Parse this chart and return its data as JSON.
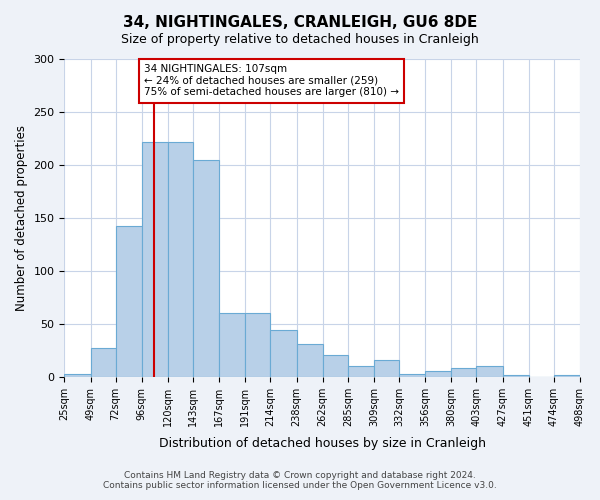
{
  "title": "34, NIGHTINGALES, CRANLEIGH, GU6 8DE",
  "subtitle": "Size of property relative to detached houses in Cranleigh",
  "xlabel": "Distribution of detached houses by size in Cranleigh",
  "ylabel": "Number of detached properties",
  "bar_values": [
    3,
    27,
    142,
    222,
    222,
    205,
    60,
    60,
    44,
    31,
    21,
    10,
    16,
    3,
    5,
    8,
    10,
    2,
    0,
    2
  ],
  "bin_edges": [
    25,
    49,
    72,
    96,
    120,
    143,
    167,
    191,
    214,
    238,
    262,
    285,
    309,
    332,
    356,
    380,
    403,
    427,
    451,
    474,
    498
  ],
  "bin_labels": [
    "25sqm",
    "49sqm",
    "72sqm",
    "96sqm",
    "120sqm",
    "143sqm",
    "167sqm",
    "191sqm",
    "214sqm",
    "238sqm",
    "262sqm",
    "285sqm",
    "309sqm",
    "332sqm",
    "356sqm",
    "380sqm",
    "403sqm",
    "427sqm",
    "451sqm",
    "474sqm",
    "498sqm"
  ],
  "bar_color": "#b8d0e8",
  "bar_edge_color": "#6aaad4",
  "vline_x": 107,
  "vline_color": "#cc0000",
  "annotation_text": "34 NIGHTINGALES: 107sqm\n← 24% of detached houses are smaller (259)\n75% of semi-detached houses are larger (810) →",
  "annotation_box_color": "#ffffff",
  "annotation_box_edge": "#cc0000",
  "ylim": [
    0,
    300
  ],
  "yticks": [
    0,
    50,
    100,
    150,
    200,
    250,
    300
  ],
  "footer": "Contains HM Land Registry data © Crown copyright and database right 2024.\nContains public sector information licensed under the Open Government Licence v3.0.",
  "bg_color": "#eef2f8",
  "plot_bg_color": "#ffffff",
  "grid_color": "#c8d4e8"
}
